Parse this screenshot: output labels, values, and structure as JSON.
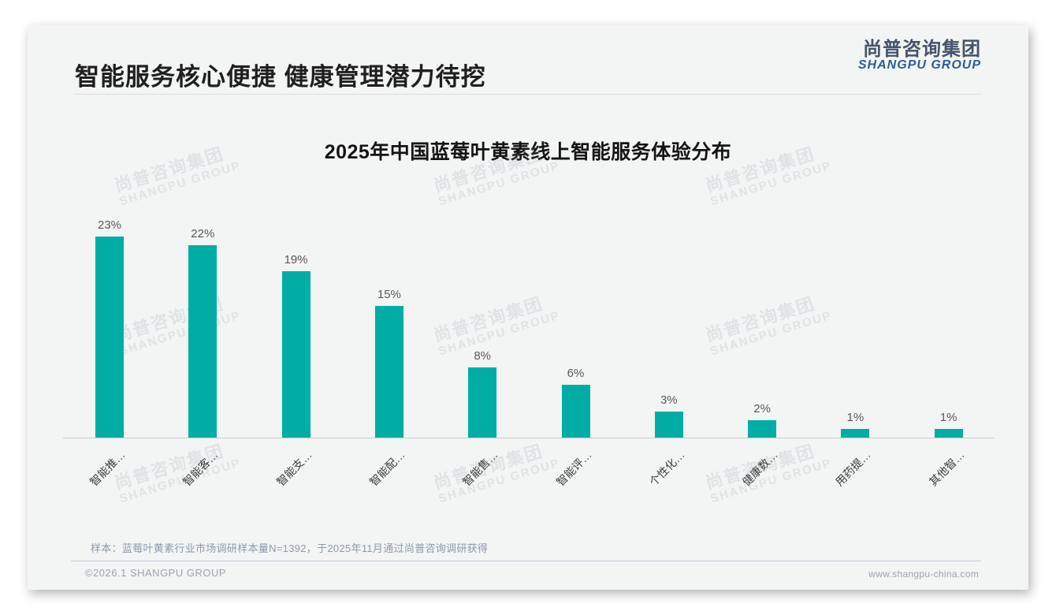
{
  "slide": {
    "title": "智能服务核心便捷 健康管理潜力待挖",
    "logo": {
      "cn": "尚普咨询集团",
      "en": "SHANGPU GROUP"
    },
    "watermark": {
      "cn": "尚普咨询集团",
      "en": "SHANGPU GROUP"
    },
    "note": "样本：蓝莓叶黄素行业市场调研样本量N=1392，于2025年11月通过尚普咨询调研获得",
    "footer": {
      "left": "©2026.1 SHANGPU GROUP",
      "right": "www.shangpu-china.com"
    }
  },
  "chart_data": {
    "type": "bar",
    "title": "2025年中国蓝莓叶黄素线上智能服务体验分布",
    "categories": [
      "智能推…",
      "智能客…",
      "智能支…",
      "智能配…",
      "智能售…",
      "智能评…",
      "个性化…",
      "健康数…",
      "用药提…",
      "其他智…"
    ],
    "values": [
      23,
      22,
      19,
      15,
      8,
      6,
      3,
      2,
      1,
      1
    ],
    "value_labels": [
      "23%",
      "22%",
      "19%",
      "15%",
      "8%",
      "6%",
      "3%",
      "2%",
      "1%",
      "1%"
    ],
    "unit": "%",
    "ylim": [
      0,
      25
    ],
    "bar_color": "#00ada5",
    "grid": false,
    "legend": false,
    "xlabel": "",
    "ylabel": ""
  }
}
